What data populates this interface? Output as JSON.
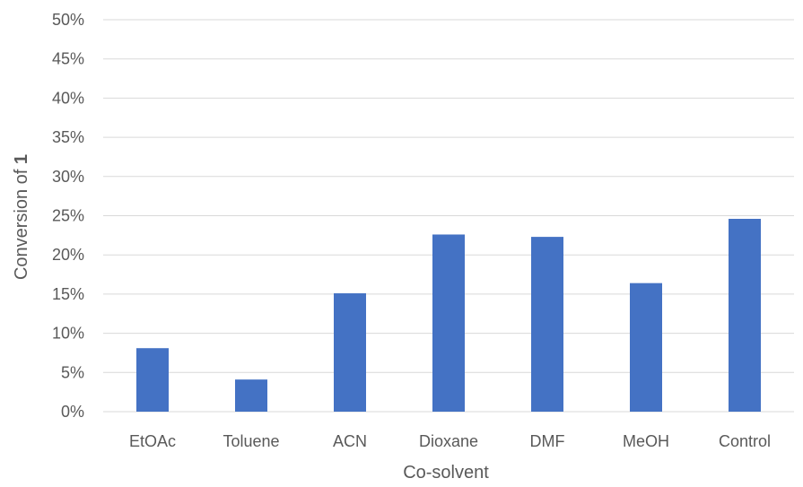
{
  "chart_data": {
    "type": "bar",
    "title": "",
    "xlabel": "Co-solvent",
    "ylabel_main": "Conversion of ",
    "ylabel_bold": "1",
    "categories": [
      "EtOAc",
      "Toluene",
      "ACN",
      "Dioxane",
      "DMF",
      "MeOH",
      "Control"
    ],
    "values": [
      8.1,
      4.1,
      15.1,
      22.6,
      22.3,
      16.4,
      24.6
    ],
    "ylim": [
      0,
      50
    ],
    "yticks": [
      0,
      5,
      10,
      15,
      20,
      25,
      30,
      35,
      40,
      45,
      50
    ],
    "ytick_labels": [
      "0%",
      "5%",
      "10%",
      "15%",
      "20%",
      "25%",
      "30%",
      "35%",
      "40%",
      "45%",
      "50%"
    ],
    "y_unit": "%",
    "grid": true,
    "legend": "none",
    "bar_color": "#4472c4"
  }
}
